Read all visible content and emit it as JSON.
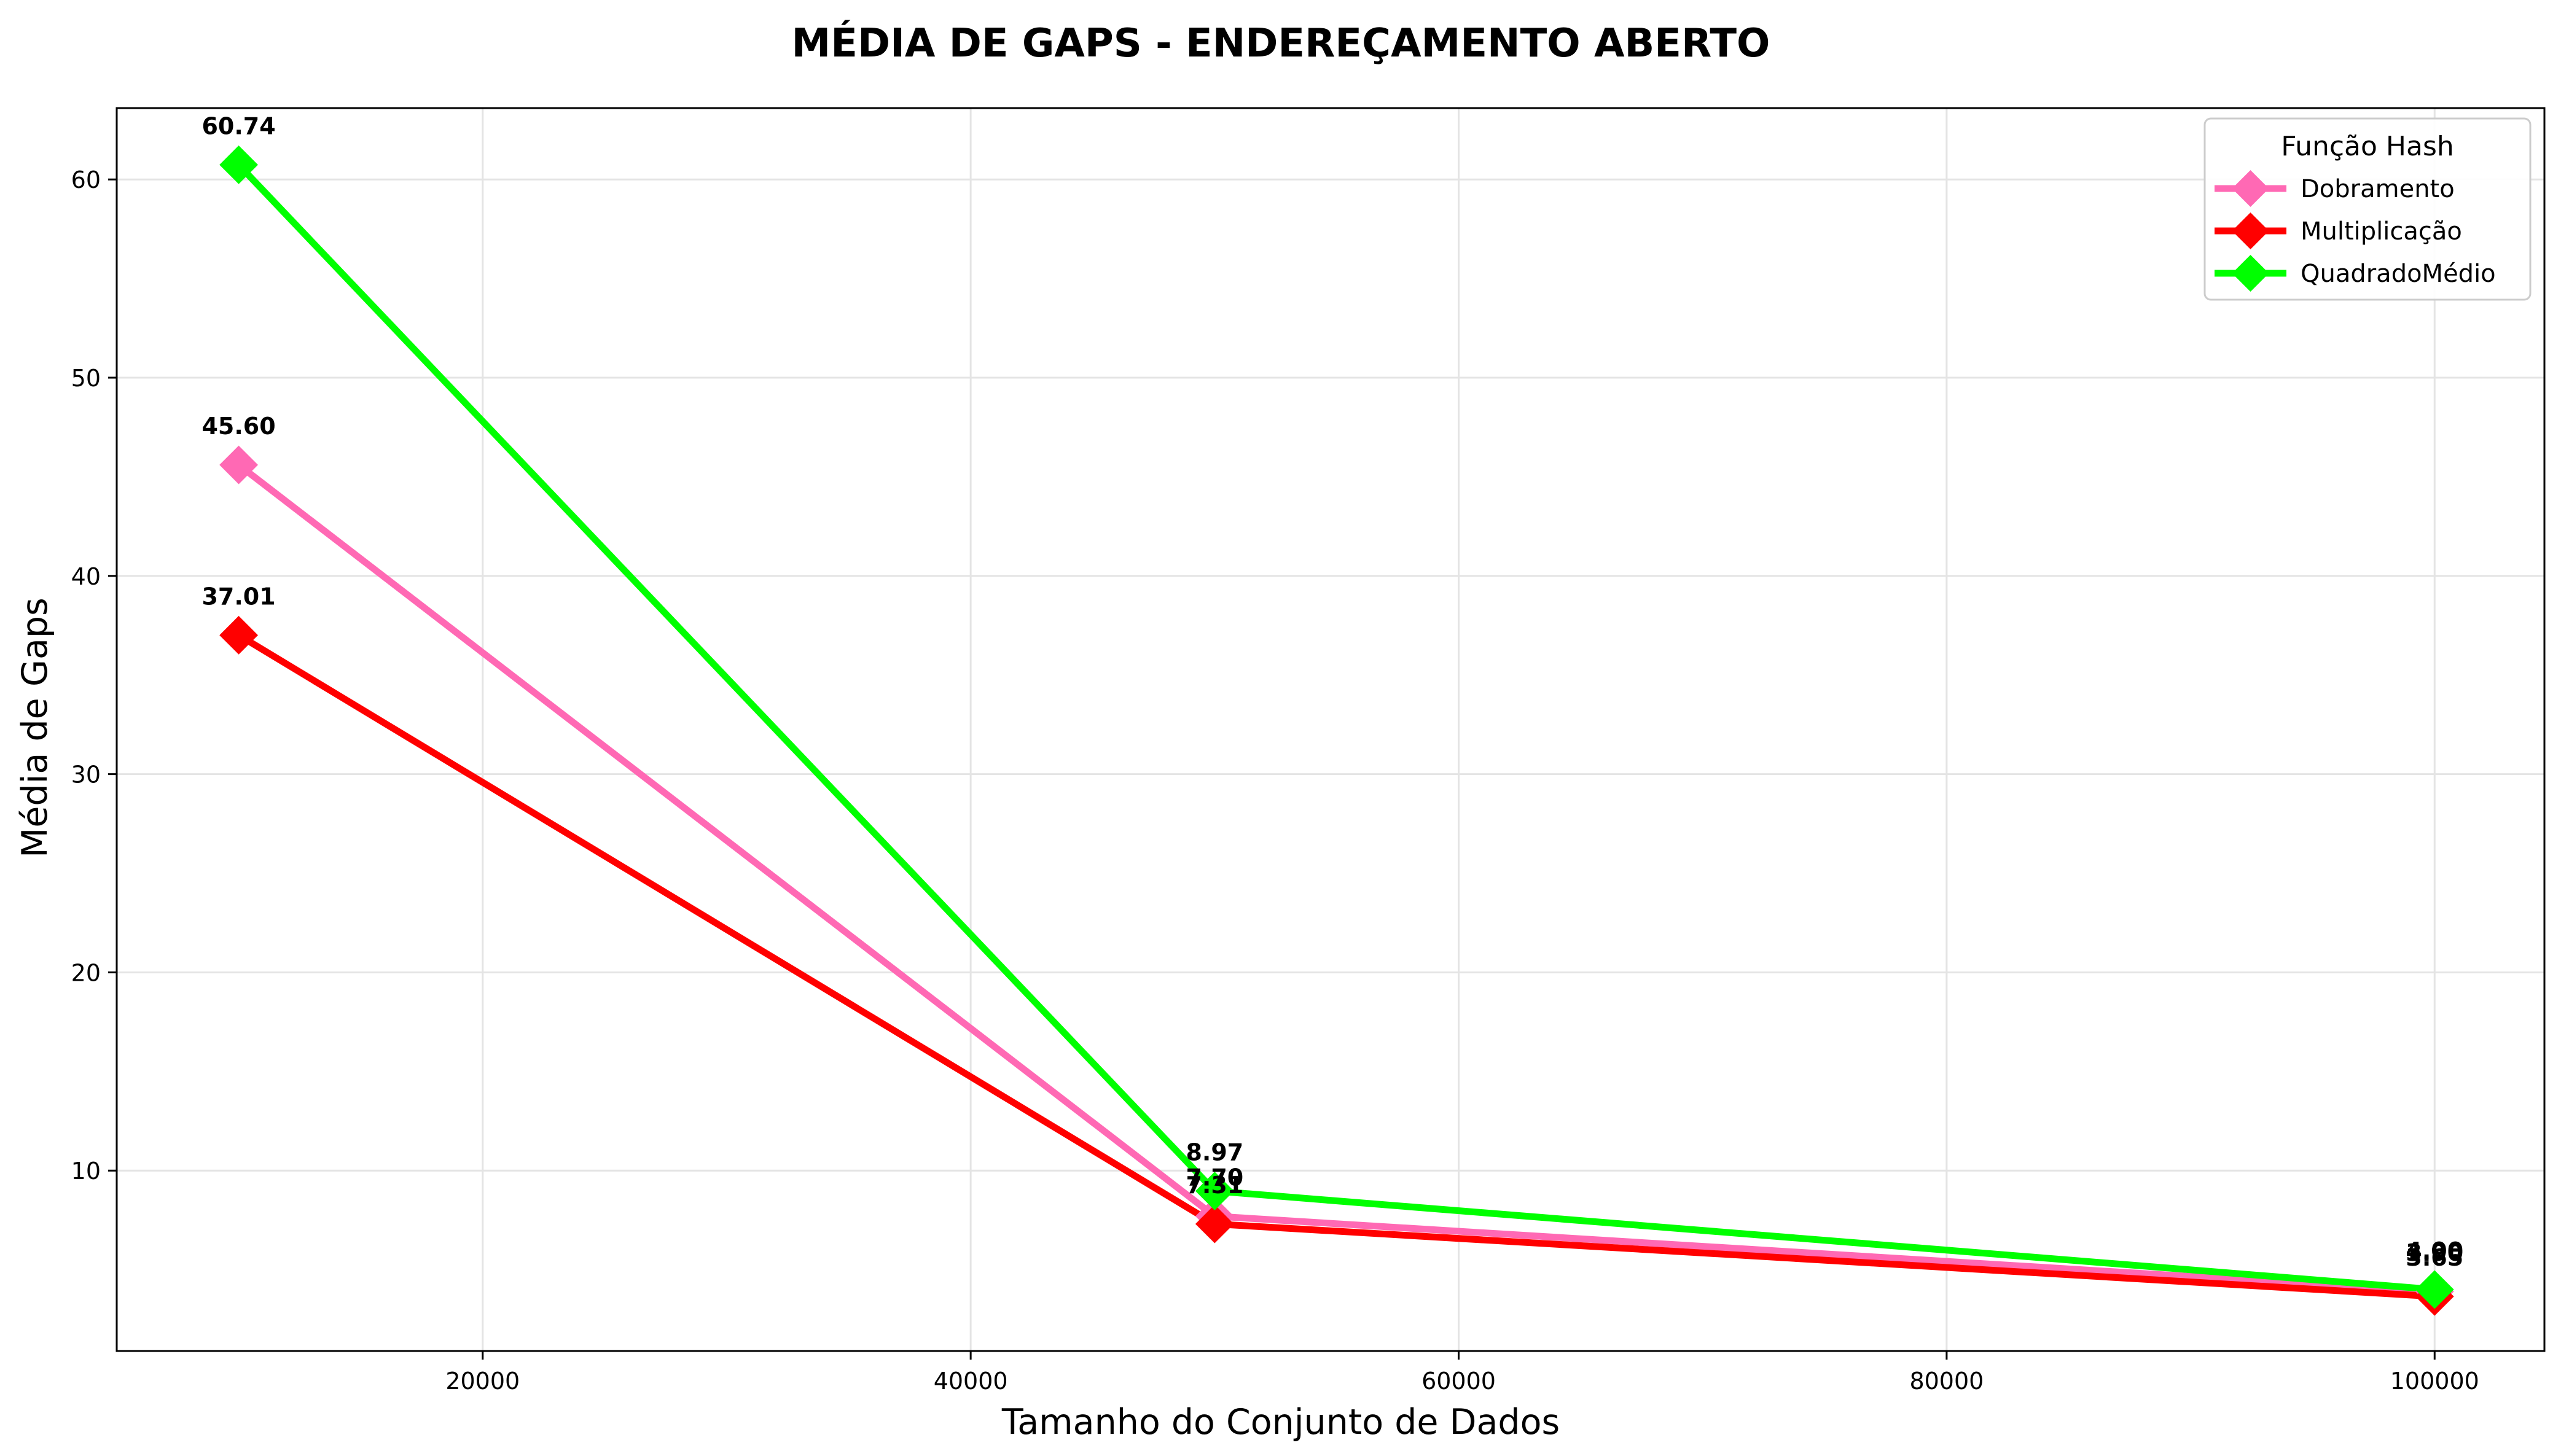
{
  "chart_data": {
    "type": "line",
    "title": "MÉDIA DE GAPS - ENDEREÇAMENTO ABERTO",
    "xlabel": "Tamanho do Conjunto de Dados",
    "ylabel": "Média de Gaps",
    "x": [
      10000,
      50000,
      100000
    ],
    "xlim": [
      5000,
      104500
    ],
    "ylim": [
      0.9,
      63.6
    ],
    "xticks": [
      20000,
      40000,
      60000,
      80000,
      100000
    ],
    "xtick_labels": [
      "20000",
      "40000",
      "60000",
      "80000",
      "100000"
    ],
    "yticks": [
      10,
      20,
      30,
      40,
      50,
      60
    ],
    "ytick_labels": [
      "10",
      "20",
      "30",
      "40",
      "50",
      "60"
    ],
    "grid": true,
    "legend": {
      "title": "Função Hash",
      "placement": "top-right"
    },
    "series": [
      {
        "name": "Dobramento",
        "color": "#ff69b4",
        "marker": "diamond",
        "values": [
          45.6,
          7.7,
          3.9
        ],
        "labels": [
          "45.60",
          "7.70",
          "3.90"
        ]
      },
      {
        "name": "Multiplicação",
        "color": "#ff0000",
        "marker": "diamond",
        "values": [
          37.01,
          7.31,
          3.65
        ],
        "labels": [
          "37.01",
          "7.31",
          "3.65"
        ]
      },
      {
        "name": "QuadradoMédio",
        "color": "#00ff00",
        "marker": "diamond",
        "values": [
          60.74,
          8.97,
          4.0
        ],
        "labels": [
          "60.74",
          "8.97",
          "4.00"
        ]
      }
    ]
  }
}
